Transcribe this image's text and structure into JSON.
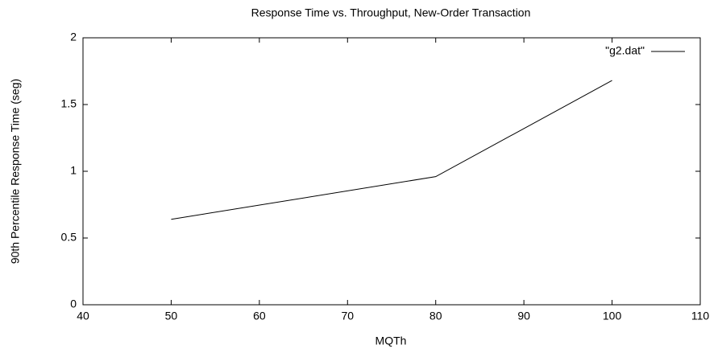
{
  "chart_data": {
    "type": "line",
    "title": "Response Time vs. Throughput, New-Order Transaction",
    "x_label": "MQTh",
    "y_label": "90th Percentile Response Time (seg)",
    "x": [
      50,
      80,
      100
    ],
    "series": [
      {
        "name": "\"g2.dat\"",
        "color": "#000000",
        "values": [
          0.64,
          0.96,
          1.68
        ]
      }
    ],
    "xlim": [
      40,
      110
    ],
    "xticks": [
      40,
      50,
      60,
      70,
      80,
      90,
      100,
      110
    ],
    "ylim": [
      0,
      2
    ],
    "yticks": [
      0,
      0.5,
      1,
      1.5,
      2
    ],
    "legend": "top-right",
    "grid": false
  }
}
